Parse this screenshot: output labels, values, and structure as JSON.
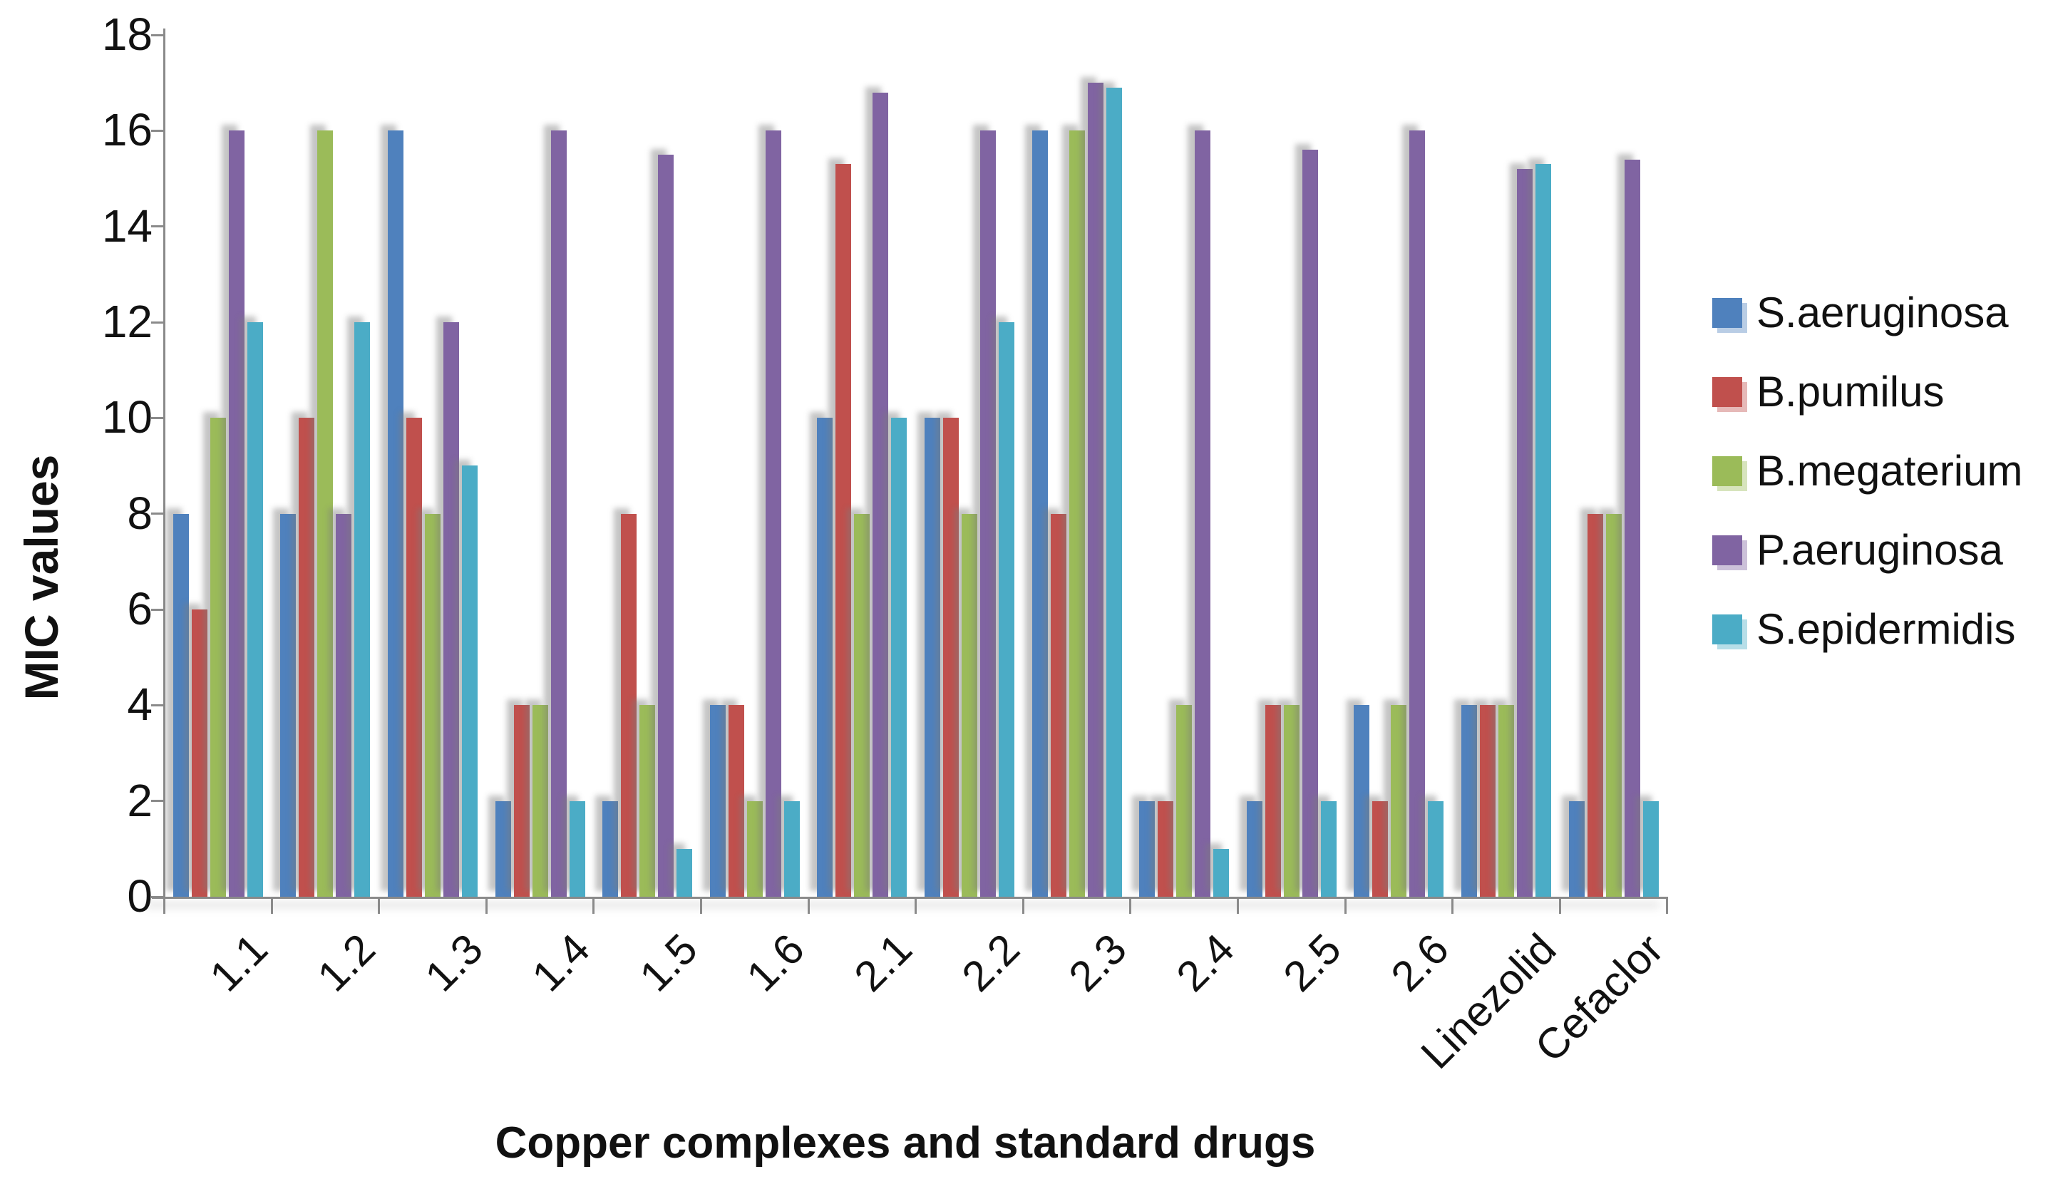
{
  "chart_data": {
    "type": "bar",
    "title": "",
    "xlabel": "Copper complexes and standard drugs",
    "ylabel": "MIC values",
    "categories": [
      "1.1",
      "1.2",
      "1.3",
      "1.4",
      "1.5",
      "1.6",
      "2.1",
      "2.2",
      "2.3",
      "2.4",
      "2.5",
      "2.6",
      "Linezolid",
      "Cefaclor"
    ],
    "series": [
      {
        "name": "S.aeruginosa",
        "color": "#4F81BD",
        "shadow_tint": "#B9CDE5",
        "values": [
          8,
          8,
          16,
          2,
          2,
          4,
          10,
          10,
          16,
          2,
          2,
          4,
          4,
          2
        ]
      },
      {
        "name": "B.pumilus",
        "color": "#C0504D",
        "shadow_tint": "#E6B9B8",
        "values": [
          6,
          10,
          10,
          4,
          8,
          4,
          15.3,
          10,
          8,
          2,
          4,
          2,
          4,
          8
        ]
      },
      {
        "name": "B.megaterium",
        "color": "#9BBB59",
        "shadow_tint": "#D7E4BD",
        "values": [
          10,
          16,
          8,
          4,
          4,
          2,
          8,
          8,
          16,
          4,
          4,
          4,
          4,
          8
        ]
      },
      {
        "name": "P.aeruginosa",
        "color": "#8064A2",
        "shadow_tint": "#CCC1D9",
        "values": [
          16,
          8,
          12,
          16,
          15.5,
          16,
          16.8,
          16,
          17,
          16,
          15.6,
          16,
          15.2,
          15.4
        ]
      },
      {
        "name": "S.epidermidis",
        "color": "#4BACC6",
        "shadow_tint": "#B7DEE8",
        "values": [
          12,
          12,
          9,
          2,
          1,
          2,
          10,
          12,
          16.9,
          1,
          2,
          2,
          15.3,
          2
        ]
      }
    ],
    "ylim": [
      0,
      18
    ],
    "yticks": [
      0,
      2,
      4,
      6,
      8,
      10,
      12,
      14,
      16,
      18
    ],
    "grid": false,
    "legend_position": "right",
    "axis_color": "#8a8a8a",
    "text_color": "#111111"
  }
}
